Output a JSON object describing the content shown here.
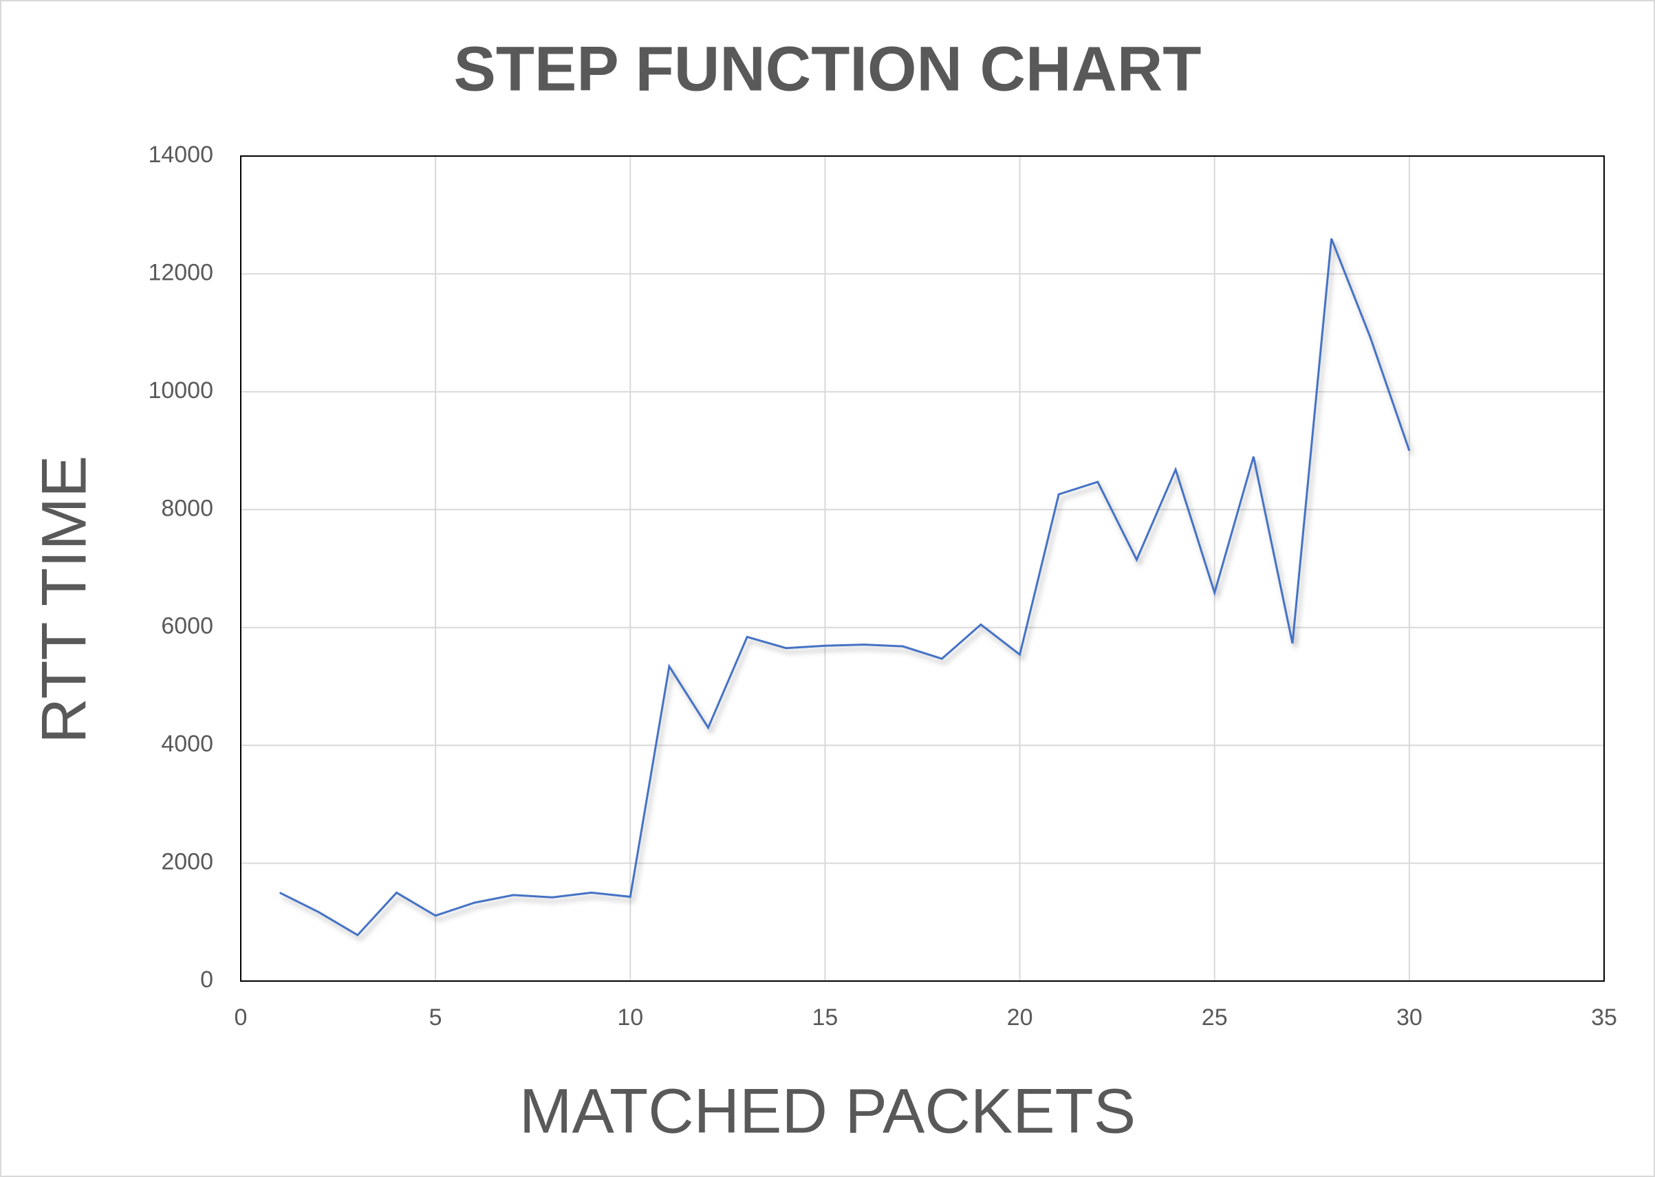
{
  "chart_data": {
    "type": "line",
    "title": "STEP FUNCTION CHART",
    "x_label": "MATCHED PACKETS",
    "y_label": "RTT TIME",
    "x": [
      1,
      2,
      3,
      4,
      5,
      6,
      7,
      8,
      9,
      10,
      11,
      12,
      13,
      14,
      15,
      16,
      17,
      18,
      19,
      20,
      21,
      22,
      23,
      24,
      25,
      26,
      27,
      28,
      29,
      30
    ],
    "series": [
      {
        "name": "RTT",
        "color": "#4472c4",
        "values": [
          1500,
          1170,
          780,
          1500,
          1110,
          1330,
          1460,
          1420,
          1500,
          1430,
          5340,
          4300,
          5840,
          5650,
          5690,
          5710,
          5680,
          5470,
          6050,
          5540,
          8260,
          8470,
          7150,
          8680,
          6590,
          8900,
          5730,
          12600,
          10920,
          9000
        ]
      }
    ],
    "xlim": [
      0,
      35
    ],
    "xticks": [
      0,
      5,
      10,
      15,
      20,
      25,
      30,
      35
    ],
    "ylim": [
      0,
      14000
    ],
    "yticks": [
      0,
      2000,
      4000,
      6000,
      8000,
      10000,
      12000,
      14000
    ],
    "grid": true
  }
}
